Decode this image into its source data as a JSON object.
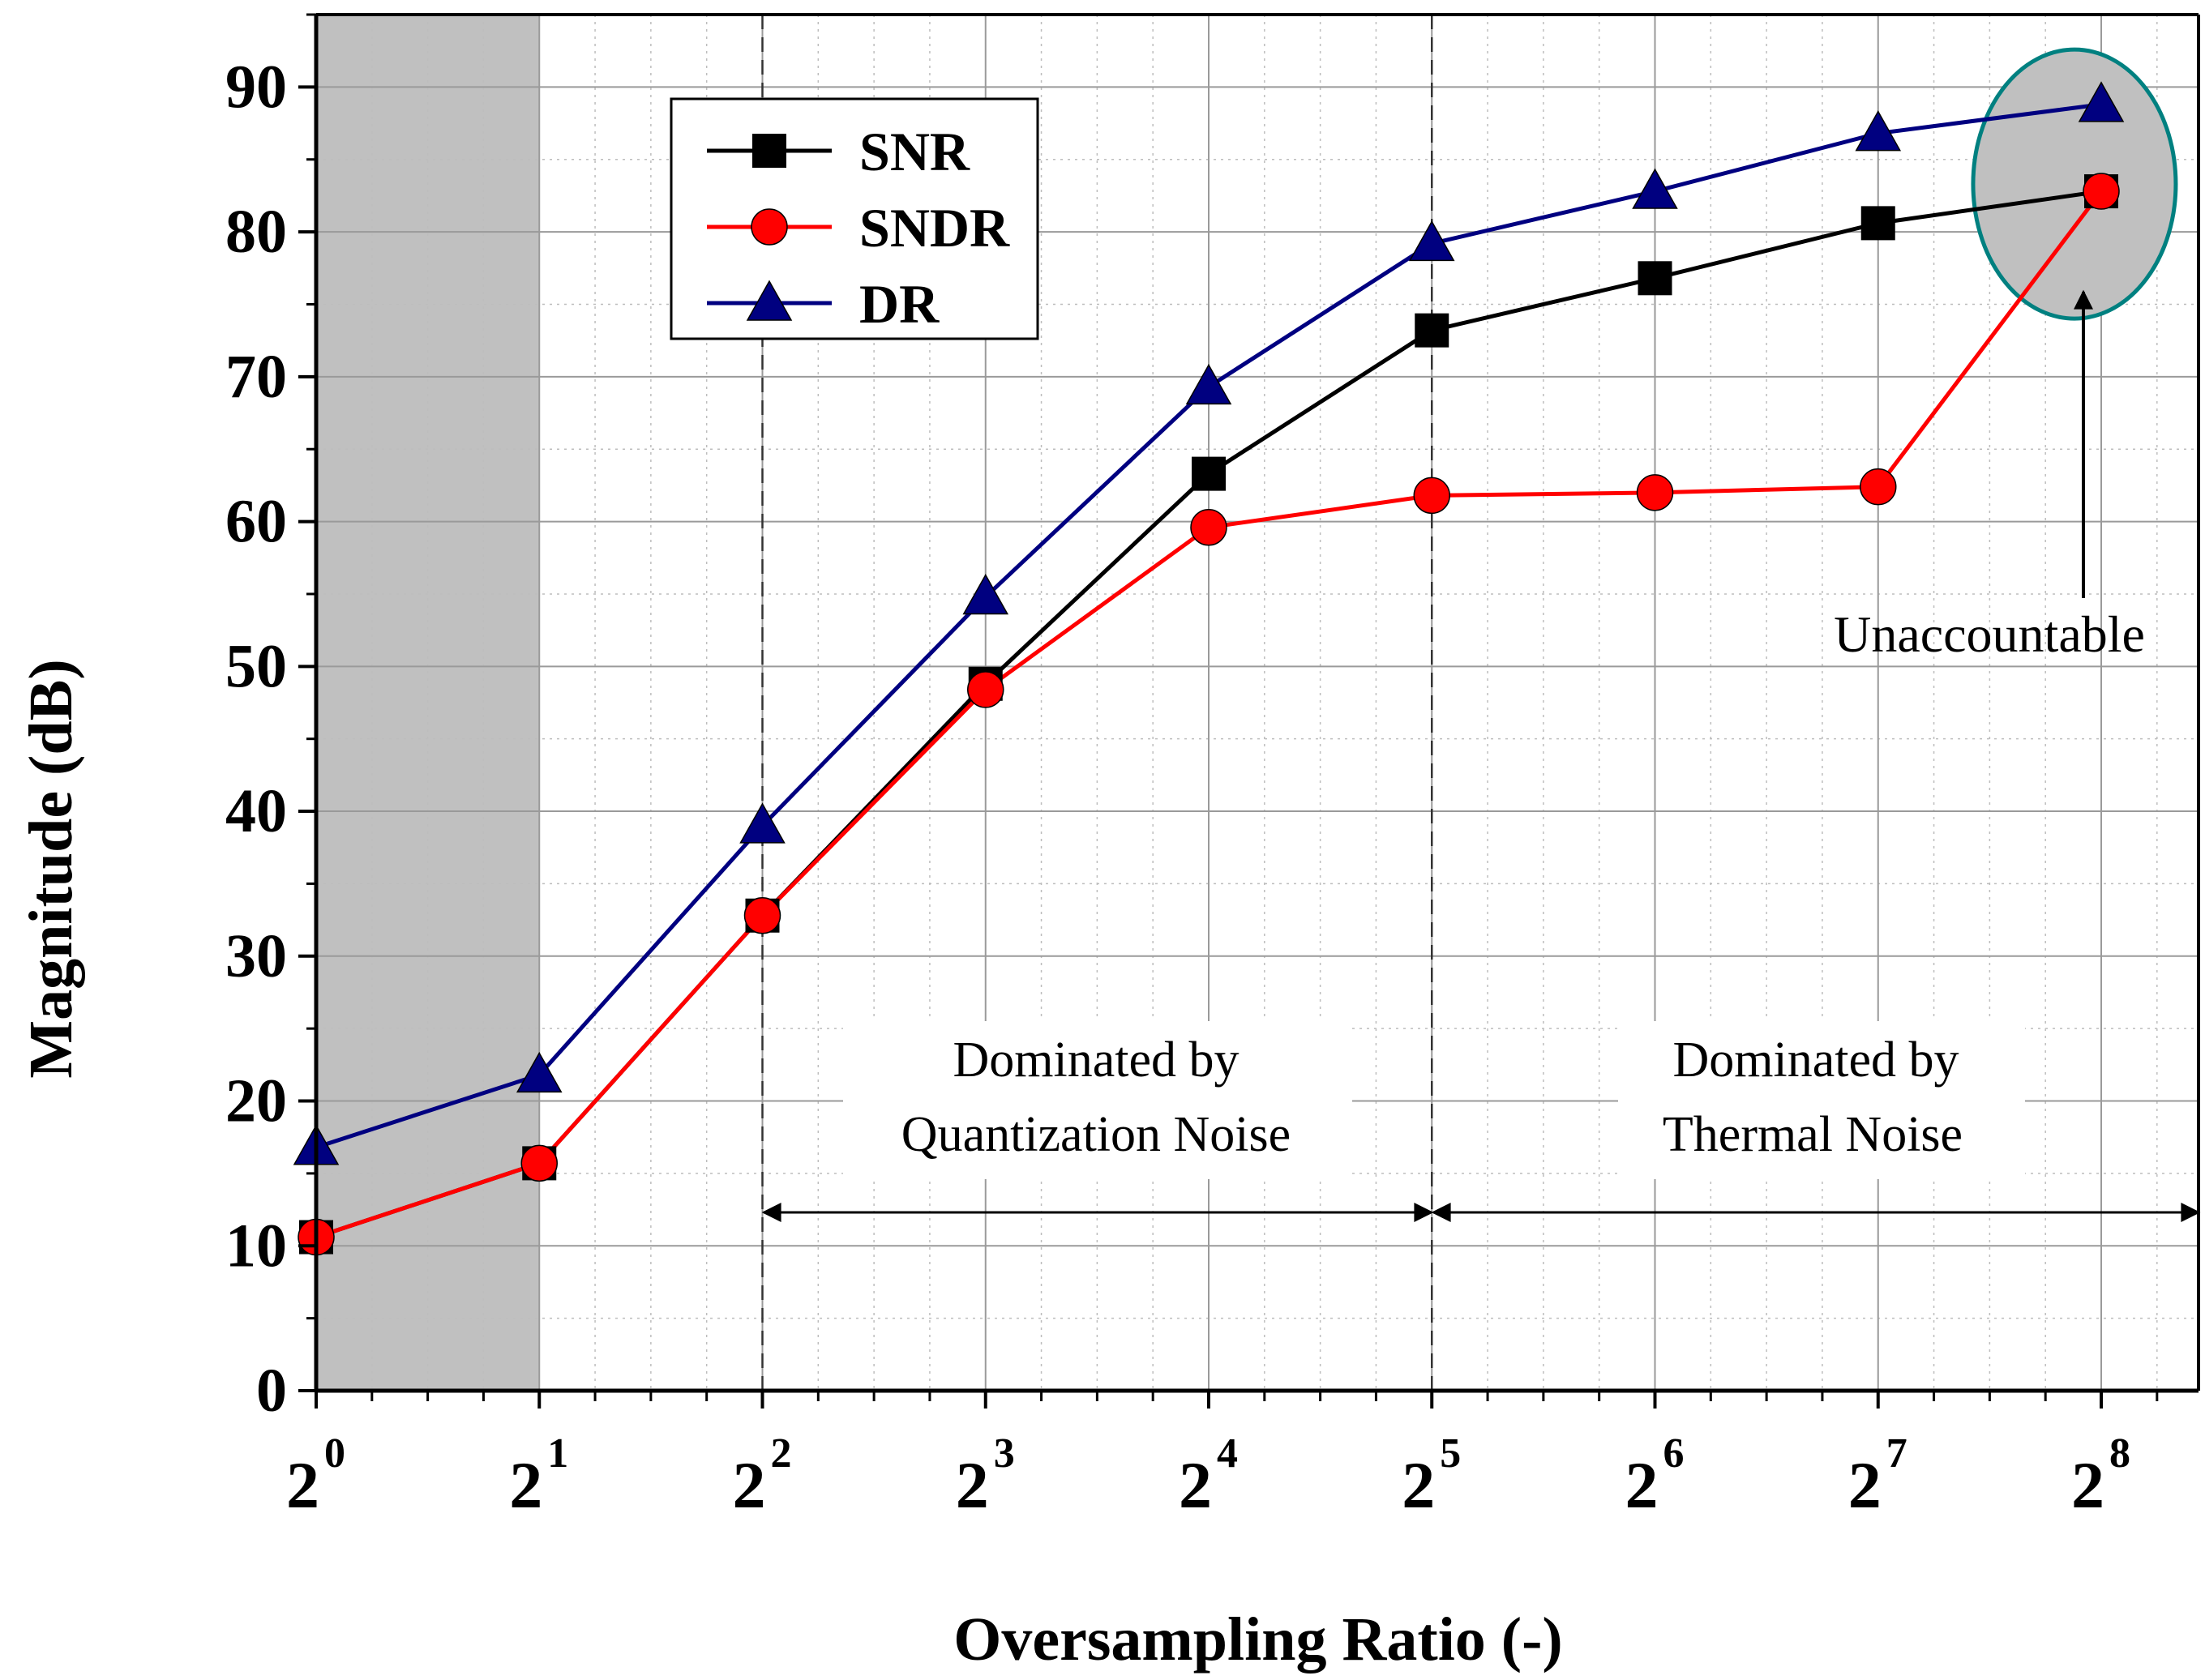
{
  "chart_data": {
    "type": "line",
    "title": "",
    "xlabel": "Oversampling Ratio (-)",
    "ylabel": "Magnitude (dB)",
    "x": [
      0,
      1,
      2,
      3,
      4,
      5,
      6,
      7,
      8
    ],
    "x_tick_base": "2",
    "x_tick_exponents": [
      "0",
      "1",
      "2",
      "3",
      "4",
      "5",
      "6",
      "7",
      "8"
    ],
    "xlim": [
      0,
      8.45
    ],
    "ylim": [
      0,
      95
    ],
    "y_ticks": [
      0,
      10,
      20,
      30,
      40,
      50,
      60,
      70,
      80,
      90
    ],
    "y_tick_labels": [
      "0",
      "10",
      "20",
      "30",
      "40",
      "50",
      "60",
      "70",
      "80",
      "90"
    ],
    "grid": true,
    "legend_position": "top-left",
    "series": [
      {
        "name": "SNR",
        "color": "#000000",
        "marker": "square",
        "x": [
          0,
          1,
          2,
          3,
          4,
          5,
          6,
          7,
          8
        ],
        "values": [
          10.6,
          15.7,
          32.8,
          48.8,
          63.3,
          73.2,
          76.8,
          80.6,
          82.8
        ]
      },
      {
        "name": "SNDR",
        "color": "#ff0000",
        "marker": "circle",
        "x": [
          0,
          1,
          2,
          3,
          4,
          5,
          6,
          7,
          8
        ],
        "values": [
          10.6,
          15.7,
          32.8,
          48.4,
          59.6,
          61.8,
          62.0,
          62.4,
          82.8
        ]
      },
      {
        "name": "DR",
        "color": "#000080",
        "marker": "triangle",
        "x": [
          0,
          1,
          2,
          3,
          4,
          5,
          6,
          7,
          8
        ],
        "values": [
          16.8,
          21.8,
          39.0,
          54.8,
          69.3,
          79.2,
          82.8,
          86.8,
          88.8
        ]
      }
    ],
    "shaded_region": {
      "x_from": 0,
      "x_to": 1,
      "color": "#c0c0c0"
    },
    "dashed_lines_x": [
      2,
      5
    ],
    "annotations": [
      {
        "lines": [
          "Dominated by",
          "Quantization Noise"
        ],
        "range_x": [
          2,
          5
        ]
      },
      {
        "lines": [
          "Dominated by",
          "Thermal Noise"
        ],
        "range_x": [
          5,
          8.45
        ]
      },
      {
        "lines": [
          "Unaccountable"
        ],
        "color": "#808080",
        "points_to": {
          "x": 7.9,
          "y": 76
        }
      }
    ],
    "highlight_ellipse": {
      "center_x": 7.88,
      "center_y": 83.3,
      "color": "#008080"
    }
  }
}
